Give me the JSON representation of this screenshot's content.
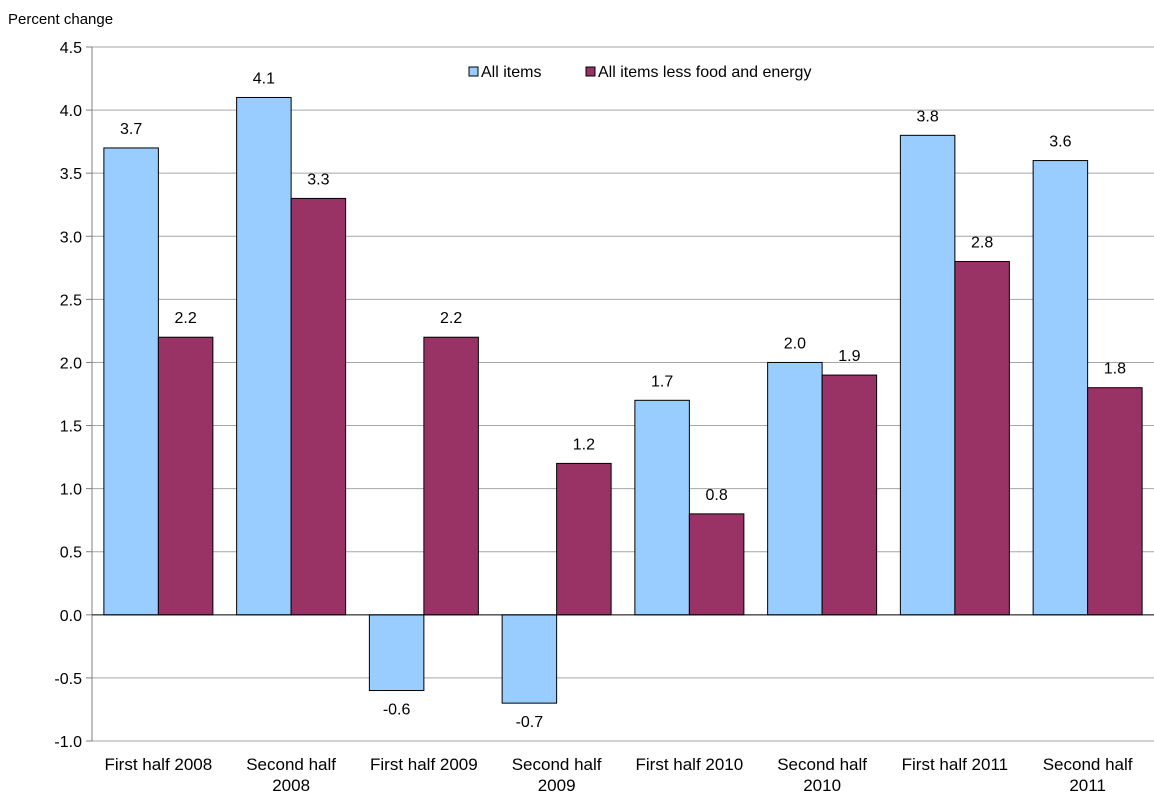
{
  "chart_data": {
    "type": "bar",
    "ylabel": "Percent change",
    "xlabel": "",
    "categories": [
      [
        "First half 2008"
      ],
      [
        "Second half",
        "2008"
      ],
      [
        "First half 2009"
      ],
      [
        "Second half",
        "2009"
      ],
      [
        "First half 2010"
      ],
      [
        "Second half",
        "2010"
      ],
      [
        "First half 2011"
      ],
      [
        "Second half",
        "2011"
      ]
    ],
    "series": [
      {
        "name": "All items",
        "color": "#99ccff",
        "values": [
          3.7,
          4.1,
          -0.6,
          -0.7,
          1.7,
          2.0,
          3.8,
          3.6
        ],
        "labels": [
          "3.7",
          "4.1",
          "-0.6",
          "-0.7",
          "1.7",
          "2.0",
          "3.8",
          "3.6"
        ]
      },
      {
        "name": "All items less food and energy",
        "color": "#993366",
        "values": [
          2.2,
          3.3,
          2.2,
          1.2,
          0.8,
          1.9,
          2.8,
          1.8
        ],
        "labels": [
          "2.2",
          "3.3",
          "2.2",
          "1.2",
          "0.8",
          "1.9",
          "2.8",
          "1.8"
        ]
      }
    ],
    "ylim": [
      -1.0,
      4.5
    ],
    "yticks": [
      "-1.0",
      "-0.5",
      "0.0",
      "0.5",
      "1.0",
      "1.5",
      "2.0",
      "2.5",
      "3.0",
      "3.5",
      "4.0",
      "4.5"
    ],
    "grid": true,
    "legend_position": "top-center"
  }
}
